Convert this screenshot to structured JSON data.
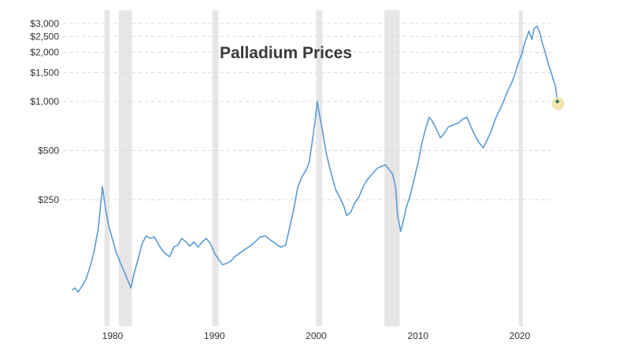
{
  "chart_data": {
    "type": "line",
    "title": "Palladium Prices",
    "xlabel": "",
    "ylabel": "",
    "y_scale": "log",
    "ylim": [
      65,
      3200
    ],
    "xlim": [
      1976.0,
      2024.0
    ],
    "grid": true,
    "legend": "none",
    "y_ticks": [
      {
        "value": 3000,
        "label": "$3,000"
      },
      {
        "value": 2500,
        "label": "$2,500"
      },
      {
        "value": 2000,
        "label": "$2,000"
      },
      {
        "value": 1500,
        "label": "$1,500"
      },
      {
        "value": 1000,
        "label": "$1,000"
      },
      {
        "value": 500,
        "label": "$500"
      },
      {
        "value": 250,
        "label": "$250"
      }
    ],
    "x_ticks": [
      {
        "value": 1980,
        "label": "1980"
      },
      {
        "value": 1990,
        "label": "1990"
      },
      {
        "value": 2000,
        "label": "2000"
      },
      {
        "value": 2010,
        "label": "2010"
      },
      {
        "value": 2020,
        "label": "2020"
      }
    ],
    "recessions": [
      [
        1979.2,
        1979.7
      ],
      [
        1980.6,
        1981.9
      ],
      [
        1989.8,
        1990.4
      ],
      [
        2000.0,
        2000.6
      ],
      [
        2006.7,
        2008.2
      ],
      [
        2019.9,
        2020.3
      ]
    ],
    "series": [
      {
        "color": "#5b9bd5",
        "x": [
          1976.0,
          1976.3,
          1976.6,
          1977.0,
          1977.4,
          1977.8,
          1978.2,
          1978.6,
          1979.0,
          1979.3,
          1979.6,
          1979.9,
          1980.3,
          1980.7,
          1981.1,
          1981.5,
          1981.8,
          1982.1,
          1982.5,
          1982.9,
          1983.3,
          1983.7,
          1984.1,
          1984.6,
          1985.1,
          1985.6,
          1986.0,
          1986.4,
          1986.8,
          1987.2,
          1987.6,
          1988.0,
          1988.4,
          1988.8,
          1989.2,
          1989.6,
          1990.0,
          1990.4,
          1990.8,
          1991.2,
          1991.6,
          1992.0,
          1992.5,
          1993.0,
          1993.5,
          1994.0,
          1994.5,
          1995.0,
          1995.5,
          1996.0,
          1996.5,
          1997.0,
          1997.4,
          1997.8,
          1998.2,
          1998.6,
          1999.0,
          1999.3,
          1999.6,
          1999.9,
          2000.1,
          2000.4,
          2000.7,
          2001.0,
          2001.3,
          2001.6,
          2001.9,
          2002.3,
          2002.7,
          2003.0,
          2003.4,
          2003.8,
          2004.2,
          2004.6,
          2005.0,
          2005.5,
          2006.0,
          2006.4,
          2006.8,
          2007.2,
          2007.5,
          2007.8,
          2008.0,
          2008.3,
          2008.6,
          2008.9,
          2009.2,
          2009.6,
          2010.0,
          2010.4,
          2010.8,
          2011.1,
          2011.4,
          2011.8,
          2012.2,
          2012.6,
          2013.0,
          2013.5,
          2014.0,
          2014.4,
          2014.8,
          2015.2,
          2015.6,
          2016.0,
          2016.4,
          2016.8,
          2017.2,
          2017.6,
          2018.0,
          2018.4,
          2018.8,
          2019.2,
          2019.5,
          2019.9,
          2020.2,
          2020.5,
          2020.9,
          2021.2,
          2021.4,
          2021.7,
          2022.0,
          2022.2,
          2022.5,
          2022.8,
          2023.1,
          2023.3,
          2023.5,
          2023.7
        ],
        "values": [
          70,
          72,
          68,
          74,
          82,
          98,
          122,
          168,
          300,
          220,
          175,
          150,
          122,
          105,
          92,
          80,
          72,
          88,
          108,
          135,
          150,
          145,
          148,
          130,
          118,
          112,
          128,
          132,
          145,
          138,
          130,
          138,
          128,
          138,
          145,
          135,
          118,
          108,
          100,
          102,
          105,
          112,
          118,
          124,
          130,
          138,
          148,
          150,
          142,
          135,
          128,
          132,
          170,
          220,
          300,
          345,
          380,
          420,
          560,
          760,
          1000,
          780,
          620,
          480,
          400,
          340,
          290,
          260,
          230,
          200,
          210,
          240,
          260,
          300,
          330,
          360,
          390,
          400,
          410,
          380,
          360,
          300,
          200,
          160,
          190,
          230,
          260,
          330,
          420,
          560,
          700,
          800,
          760,
          680,
          600,
          640,
          700,
          720,
          740,
          780,
          800,
          700,
          620,
          560,
          520,
          580,
          660,
          780,
          880,
          1000,
          1150,
          1300,
          1450,
          1750,
          1950,
          2300,
          2700,
          2400,
          2800,
          2900,
          2600,
          2300,
          2000,
          1700,
          1500,
          1350,
          1250,
          1000
        ]
      }
    ],
    "last_point_marker_color": "#f2e2a5"
  }
}
